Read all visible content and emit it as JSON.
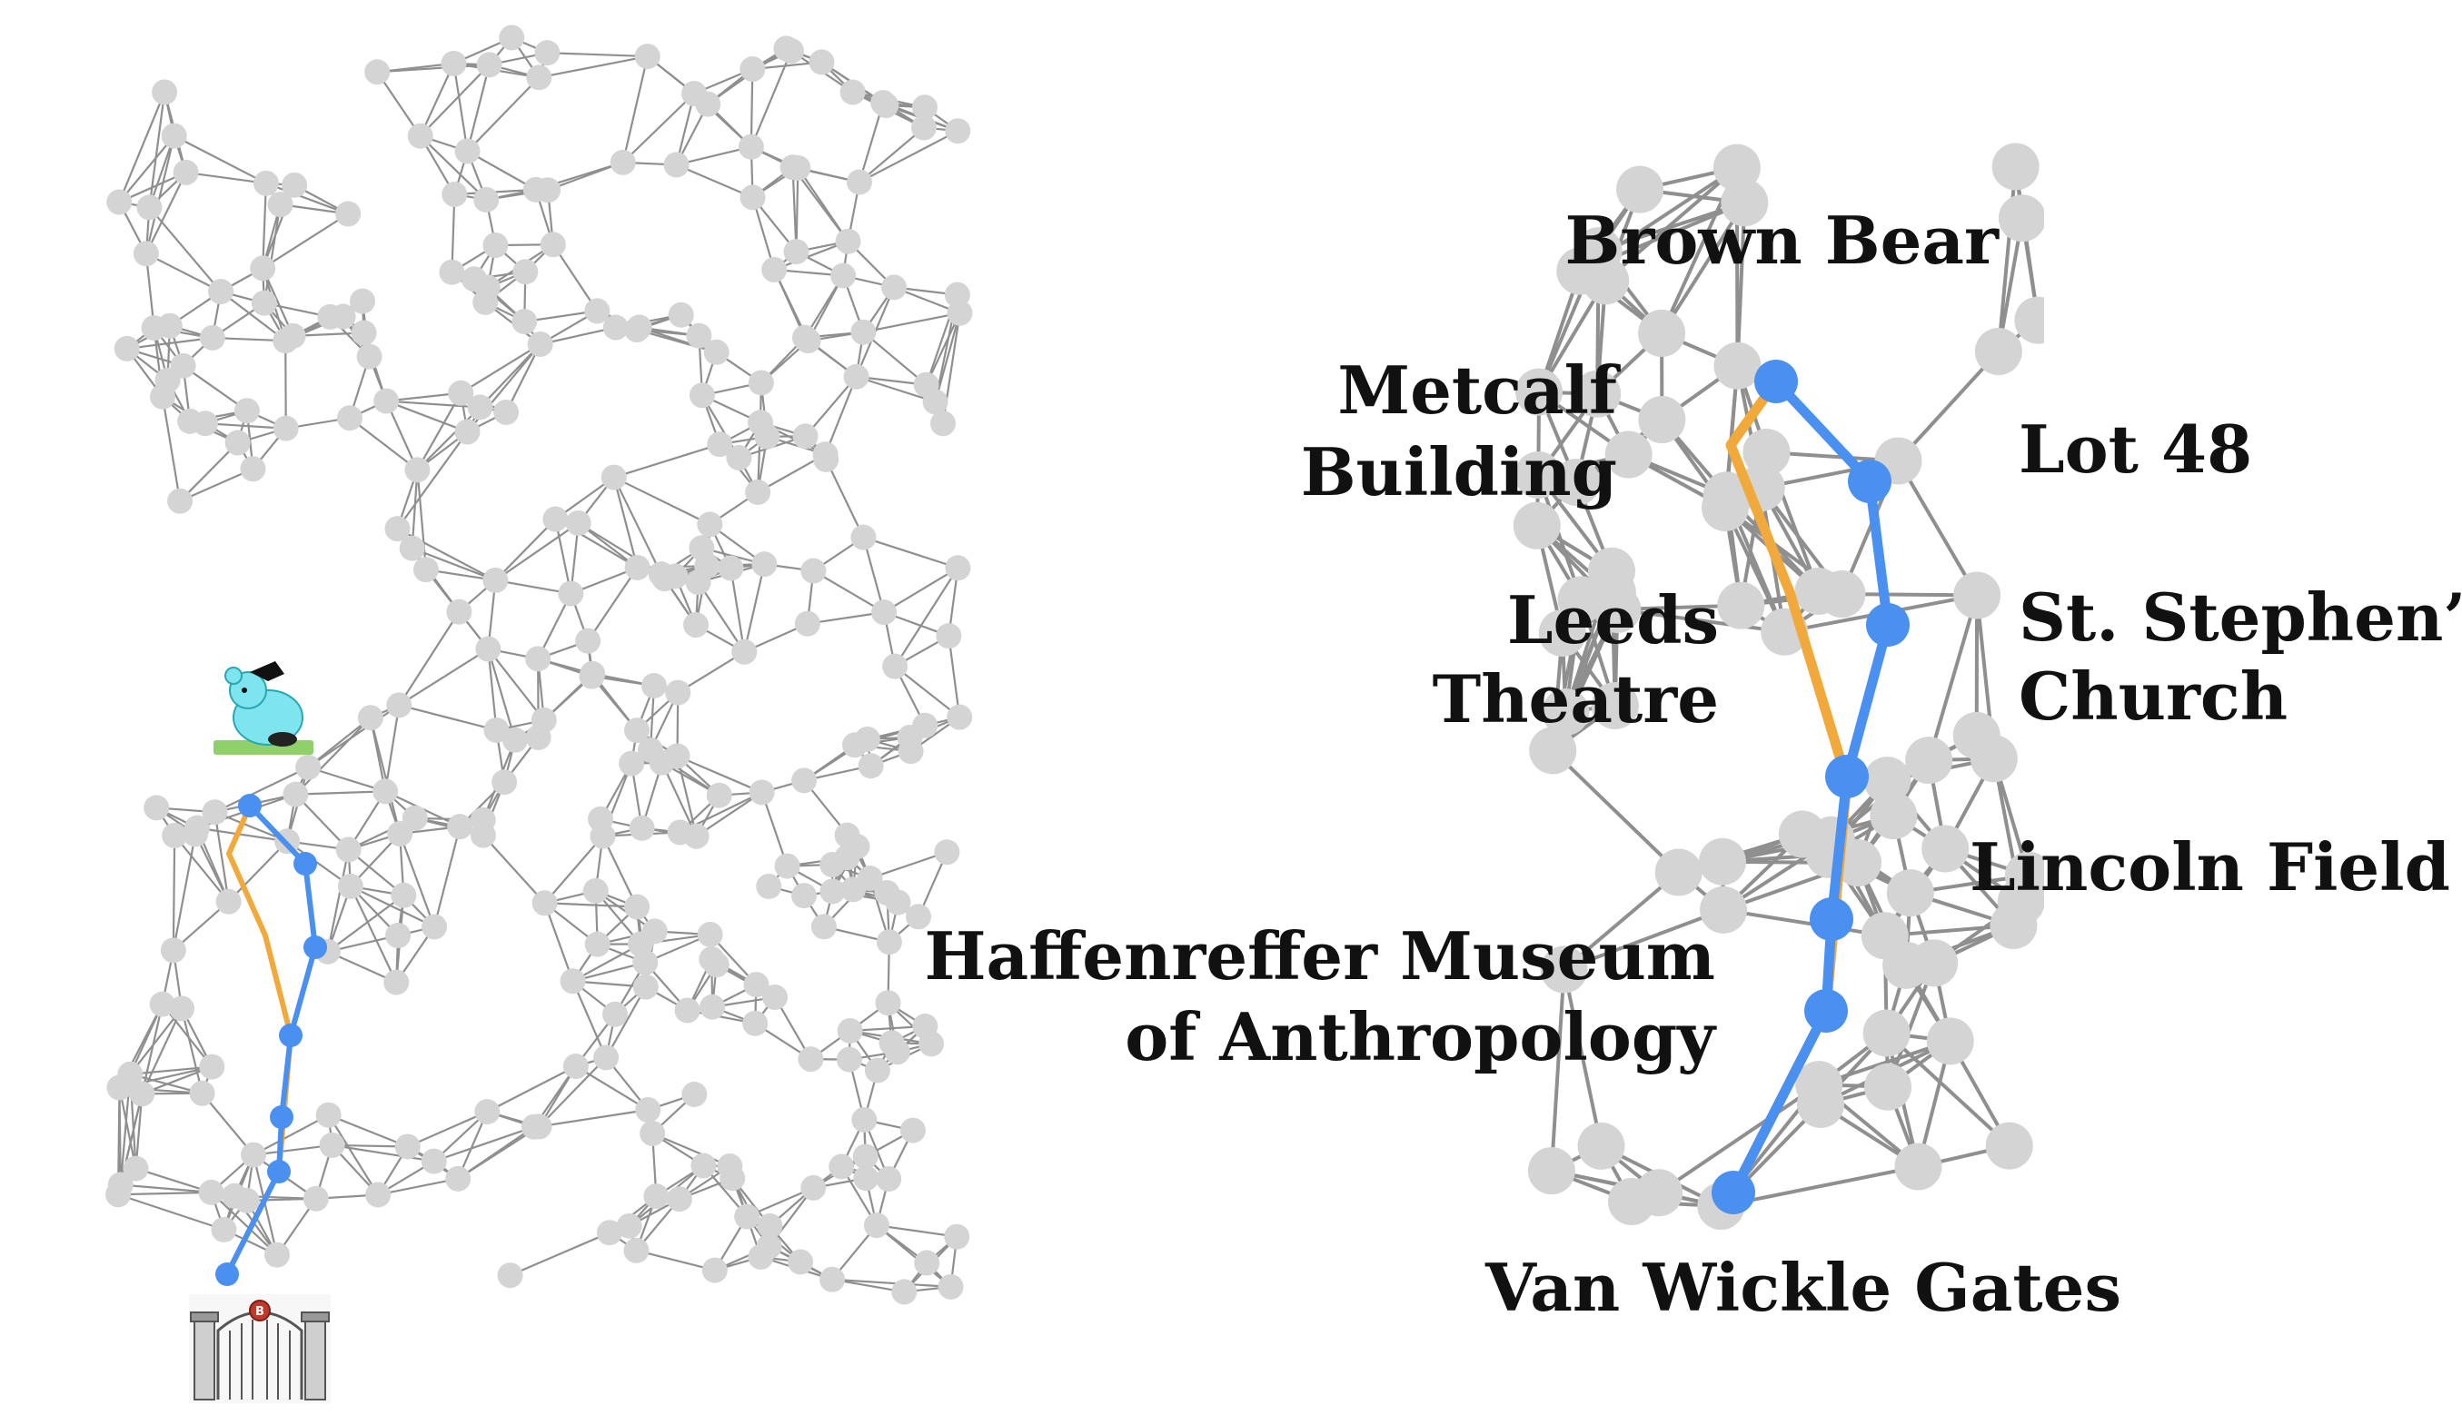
{
  "colors": {
    "node": "#d4d4d4",
    "edge": "#8f8f8f",
    "route_blue": "#4a90f0",
    "route_orange": "#f0a93a",
    "label": "#111111"
  },
  "icons": {
    "start": "campus-gates-icon",
    "end": "brown-bear-icon"
  },
  "labels": {
    "brown_bear": "Brown Bear",
    "metcalf_1": "Metcalf",
    "metcalf_2": "Building",
    "lot48": "Lot 48",
    "leeds_1": "Leeds",
    "leeds_2": "Theatre",
    "ststephens_1": "St. Stephen’s",
    "ststephens_2": "Church",
    "lincoln": "Lincoln Field",
    "haffenreffer_1": "Haffenreffer Museum",
    "haffenreffer_2": "of Anthropology",
    "vanwickle": "Van Wickle Gates"
  }
}
